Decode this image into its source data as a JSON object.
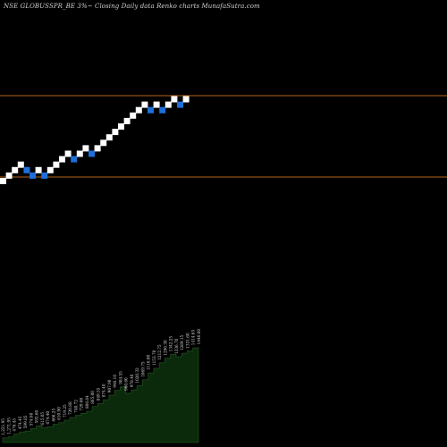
{
  "title": "NSE GLOBUSSPR_BE 3%~  Closing Daily data  Renko  charts MunafaSutra.com",
  "colors": {
    "background": "#000000",
    "up_brick": "#ffffff",
    "down_brick": "#1e6fd9",
    "reference_line": "#b5651d",
    "volume_fill": "#0b2a0b",
    "volume_edge": "#1f4a1f",
    "label_text": "#d8d8d8"
  },
  "chart_data": [
    {
      "type": "renko",
      "title": "NSE GLOBUSSPR_BE 3%~  Closing Daily data  Renko  charts MunafaSutra.com",
      "xlabel": "",
      "ylabel": "",
      "grid": false,
      "reference_lines": [
        "upper",
        "lower"
      ],
      "bricks": [
        "up",
        "up",
        "up",
        "up",
        "down",
        "down",
        "up",
        "down",
        "up",
        "up",
        "up",
        "up",
        "down",
        "up",
        "up",
        "down",
        "up",
        "up",
        "up",
        "up",
        "up",
        "up",
        "up",
        "up",
        "up",
        "down",
        "up",
        "down",
        "up",
        "up",
        "down",
        "up"
      ]
    },
    {
      "type": "area",
      "title": "",
      "xlabel": "",
      "ylabel": "",
      "grid": false,
      "x": [
        1,
        2,
        3,
        4,
        5,
        6,
        7,
        8,
        9,
        10,
        11,
        12,
        13,
        14,
        15,
        16,
        17,
        18,
        19,
        20,
        21,
        22,
        23,
        24,
        25,
        26,
        27,
        28,
        29,
        30,
        31,
        32,
        33,
        34,
        35,
        36
      ],
      "values": [
        482.5,
        492.3,
        524.4,
        548.2,
        557.7,
        586.0,
        615.7,
        594.3,
        605.2,
        634.8,
        652.4,
        679.9,
        709.9,
        733.1,
        755.4,
        780.3,
        832.5,
        866.9,
        908.4,
        958.1,
        1013.6,
        1052.0,
        980.7,
        1018.3,
        1064.2,
        1132.4,
        1208.6,
        1259.8,
        1322.7,
        1372.9,
        1416.8,
        1390.1,
        1428.5,
        1452.9,
        1488.2,
        1496.7
      ],
      "data_labels": [
        "1,221.95",
        "1,271.95",
        "476.45",
        "474.45",
        "599.85",
        "574.60",
        "592.60",
        "615.05",
        "674.40",
        "666.25",
        "610.90",
        "719.25",
        "720.88",
        "740.72",
        "729.00",
        "806.64",
        "865.00",
        "849.55",
        "874.40",
        "907.90",
        "946.10",
        "984.55",
        "960.60",
        "978.40",
        "1020.32",
        "1069.75",
        "1116.00",
        "1153.70",
        "1212.75",
        "1296.30",
        "1342.25",
        "1336.70",
        "1289.15",
        "1331.60",
        "1414.65",
        "1446.60"
      ]
    }
  ]
}
